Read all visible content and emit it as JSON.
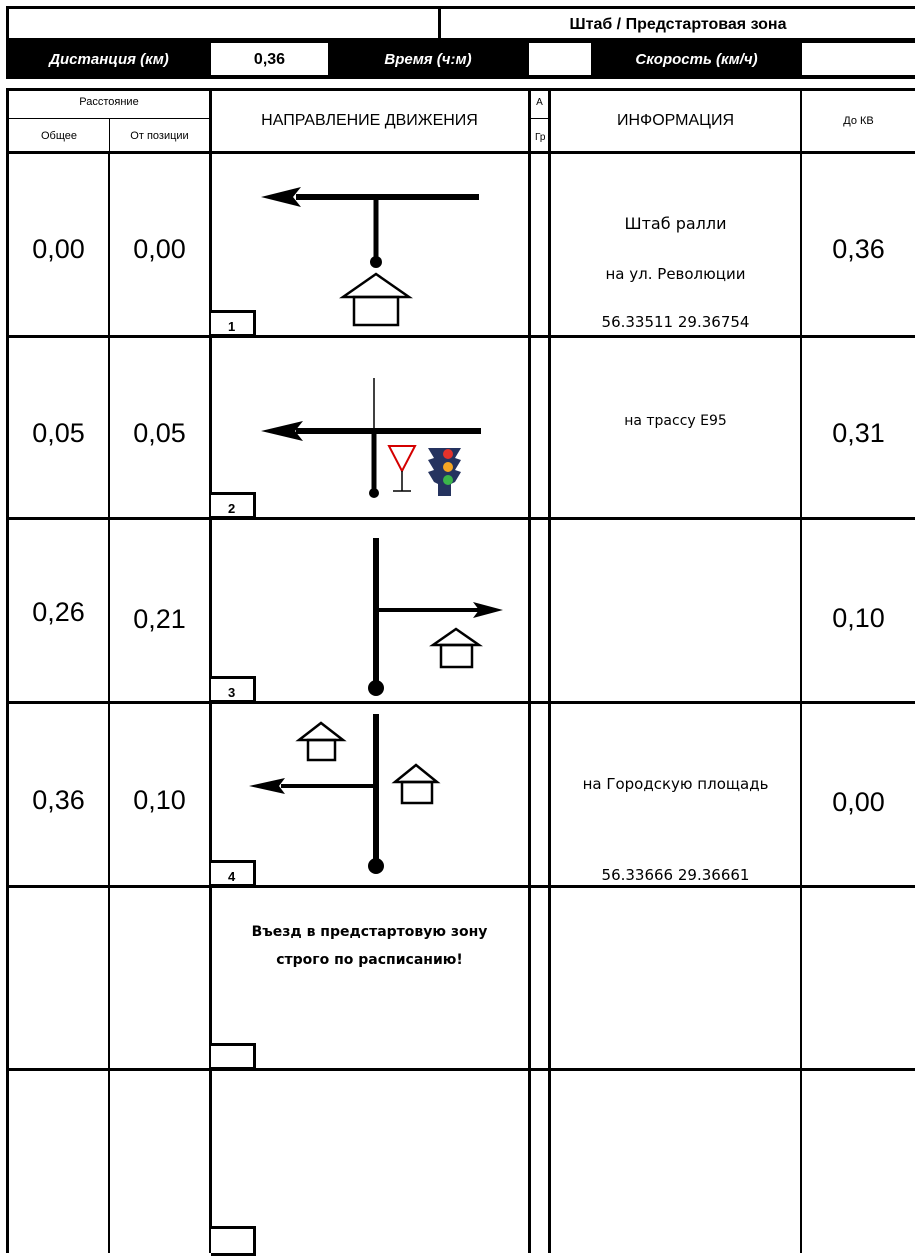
{
  "header": {
    "title": "Штаб / Предстартовая зона",
    "distance_label": "Дистанция (км)",
    "distance_value": "0,36",
    "time_label": "Время (ч:м)",
    "time_value": "",
    "speed_label": "Скорость (км/ч)",
    "speed_value": ""
  },
  "columns": {
    "distance_group": "Расстояние",
    "total": "Общее",
    "from_position": "От позиции",
    "direction": "НАПРАВЛЕНИЕ ДВИЖЕНИЯ",
    "a_top": "А",
    "a_bottom": "Гр",
    "info": "ИНФОРМАЦИЯ",
    "to_kv": "До КВ"
  },
  "rows": [
    {
      "num": "1",
      "total": "0,00",
      "from_pos": "0,00",
      "to_kv": "0,36",
      "info": [
        "Штаб ралли",
        "на ул. Революции",
        "56.33511 29.36754"
      ]
    },
    {
      "num": "2",
      "total": "0,05",
      "from_pos": "0,05",
      "to_kv": "0,31",
      "info": [
        "на трассу Е95"
      ]
    },
    {
      "num": "3",
      "total": "0,26",
      "from_pos": "0,21",
      "to_kv": "0,10",
      "info": []
    },
    {
      "num": "4",
      "total": "0,36",
      "from_pos": "0,10",
      "to_kv": "0,00",
      "info": [
        "на Городскую площадь",
        "56.33666 29.36661"
      ]
    },
    {
      "num": "",
      "total": "",
      "from_pos": "",
      "to_kv": "",
      "note_line1": "Въезд в предстартовую зону",
      "note_line2": "строго по расписанию!"
    },
    {
      "num": "",
      "total": "",
      "from_pos": "",
      "to_kv": ""
    }
  ],
  "icons": {
    "house": "house-icon",
    "yield": "yield-sign-icon",
    "traffic_light": "traffic-light-icon"
  }
}
